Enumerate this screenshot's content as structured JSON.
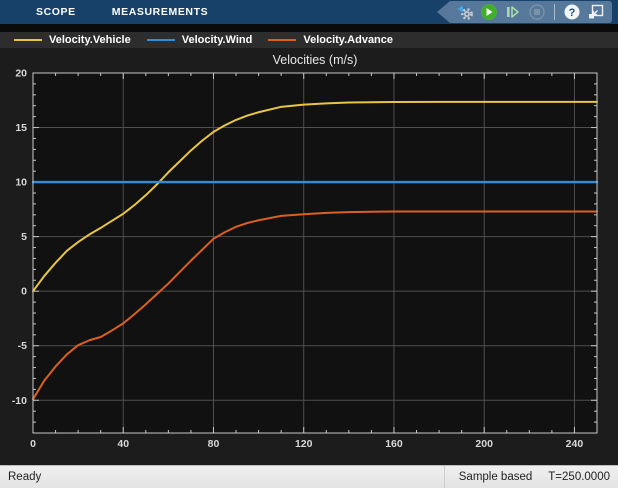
{
  "toolstrip": {
    "tabs": [
      {
        "label": "SCOPE",
        "active": true
      },
      {
        "label": "MEASUREMENTS",
        "active": false
      }
    ],
    "toolbar_buttons": [
      {
        "name": "stepping-options",
        "icon": "gear-with-arrows",
        "enabled": true
      },
      {
        "name": "run",
        "icon": "play",
        "enabled": true
      },
      {
        "name": "step-forward",
        "icon": "step",
        "enabled": true
      },
      {
        "name": "stop",
        "icon": "stop",
        "enabled": false
      },
      {
        "name": "help",
        "icon": "question-mark",
        "enabled": true
      },
      {
        "name": "undock",
        "icon": "pop-out",
        "enabled": true
      }
    ]
  },
  "chart_data": {
    "type": "line",
    "title": "Velocities (m/s)",
    "xlabel": "",
    "ylabel": "",
    "xlim": [
      0,
      250
    ],
    "ylim": [
      -13,
      20
    ],
    "xticks": [
      0,
      40,
      80,
      120,
      160,
      200,
      240
    ],
    "yticks": [
      -10,
      -5,
      0,
      5,
      10,
      15,
      20
    ],
    "minor_x_step": 10,
    "minor_y_step": 1,
    "grid": true,
    "legend_position": "top",
    "plot_bg": "#111111",
    "outer_bg": "#1c1c1c",
    "grid_color": "#4f4f4f",
    "axis_color": "#c8c8c8",
    "tick_label_color": "#d8d8d8",
    "title_color": "#e8e8e8",
    "x": [
      0,
      5,
      10,
      15,
      20,
      25,
      30,
      35,
      40,
      45,
      50,
      55,
      60,
      65,
      70,
      75,
      80,
      85,
      90,
      95,
      100,
      110,
      120,
      130,
      140,
      150,
      160,
      180,
      200,
      225,
      250
    ],
    "series": [
      {
        "name": "Velocity.Vehicle",
        "color": "#e8c63f",
        "width": 2,
        "values": [
          0,
          1.4,
          2.6,
          3.7,
          4.5,
          5.2,
          5.8,
          6.45,
          7.1,
          7.9,
          8.8,
          9.8,
          10.9,
          11.9,
          12.9,
          13.8,
          14.6,
          15.2,
          15.7,
          16.1,
          16.4,
          16.9,
          17.1,
          17.22,
          17.3,
          17.32,
          17.34,
          17.35,
          17.35,
          17.35,
          17.35
        ]
      },
      {
        "name": "Velocity.Wind",
        "color": "#2d8fd9",
        "width": 2.4,
        "values": [
          10,
          10,
          10,
          10,
          10,
          10,
          10,
          10,
          10,
          10,
          10,
          10,
          10,
          10,
          10,
          10,
          10,
          10,
          10,
          10,
          10,
          10,
          10,
          10,
          10,
          10,
          10,
          10,
          10,
          10,
          10
        ]
      },
      {
        "name": "Velocity.Advance",
        "color": "#d9601e",
        "width": 2,
        "values": [
          -9.9,
          -8.2,
          -6.9,
          -5.8,
          -4.95,
          -4.5,
          -4.2,
          -3.6,
          -2.95,
          -2.1,
          -1.2,
          -0.25,
          0.7,
          1.75,
          2.8,
          3.8,
          4.8,
          5.4,
          5.9,
          6.25,
          6.5,
          6.9,
          7.05,
          7.18,
          7.25,
          7.28,
          7.3,
          7.3,
          7.3,
          7.3,
          7.3
        ]
      }
    ]
  },
  "status_bar": {
    "ready": "Ready",
    "mode": "Sample based",
    "time": "T=250.0000"
  }
}
